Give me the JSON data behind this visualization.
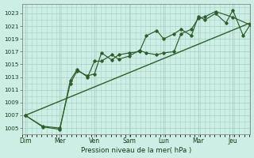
{
  "background_color": "#cceee4",
  "grid_color": "#aad4c8",
  "line_color": "#2d5e2d",
  "ylabel_ticks": [
    1005,
    1007,
    1009,
    1011,
    1013,
    1015,
    1017,
    1019,
    1021,
    1023
  ],
  "x_tick_labels": [
    "Dim",
    "Mer",
    "Ven",
    "Sam",
    "Lun",
    "Mar",
    "Jeu"
  ],
  "x_tick_pos": [
    0,
    1,
    2,
    3,
    4,
    5,
    6
  ],
  "xlabel": "Pression niveau de la mer( hPa )",
  "ylim": [
    1004.0,
    1024.5
  ],
  "xlim": [
    -0.1,
    6.5
  ],
  "line1_x": [
    0,
    0.5,
    1.0,
    1.3,
    1.5,
    1.8,
    2.0,
    2.2,
    2.5,
    2.7,
    3.0,
    3.3,
    3.5,
    3.8,
    4.0,
    4.3,
    4.5,
    4.8,
    5.0,
    5.2,
    5.5,
    5.8,
    6.0,
    6.3,
    6.5
  ],
  "line1_y": [
    1007.0,
    1005.3,
    1005.0,
    1012.0,
    1014.0,
    1013.2,
    1013.5,
    1016.8,
    1015.7,
    1016.5,
    1016.8,
    1017.0,
    1019.5,
    1020.3,
    1019.0,
    1019.8,
    1020.5,
    1019.5,
    1022.5,
    1022.0,
    1023.0,
    1021.5,
    1023.5,
    1019.5,
    1021.2
  ],
  "line2_x": [
    0,
    0.5,
    1.0,
    1.3,
    1.5,
    1.8,
    2.0,
    2.2,
    2.5,
    2.7,
    3.0,
    3.3,
    3.5,
    3.8,
    4.0,
    4.3,
    4.5,
    4.8,
    5.0,
    5.2,
    5.5,
    6.0,
    6.5
  ],
  "line2_y": [
    1007.0,
    1005.2,
    1004.8,
    1012.5,
    1014.2,
    1013.0,
    1015.5,
    1015.5,
    1016.5,
    1015.8,
    1016.3,
    1017.2,
    1016.8,
    1016.5,
    1016.8,
    1017.0,
    1019.8,
    1020.5,
    1022.2,
    1022.5,
    1023.3,
    1022.4,
    1021.2
  ],
  "line3_x": [
    0,
    6.5
  ],
  "line3_y": [
    1007.0,
    1021.5
  ]
}
